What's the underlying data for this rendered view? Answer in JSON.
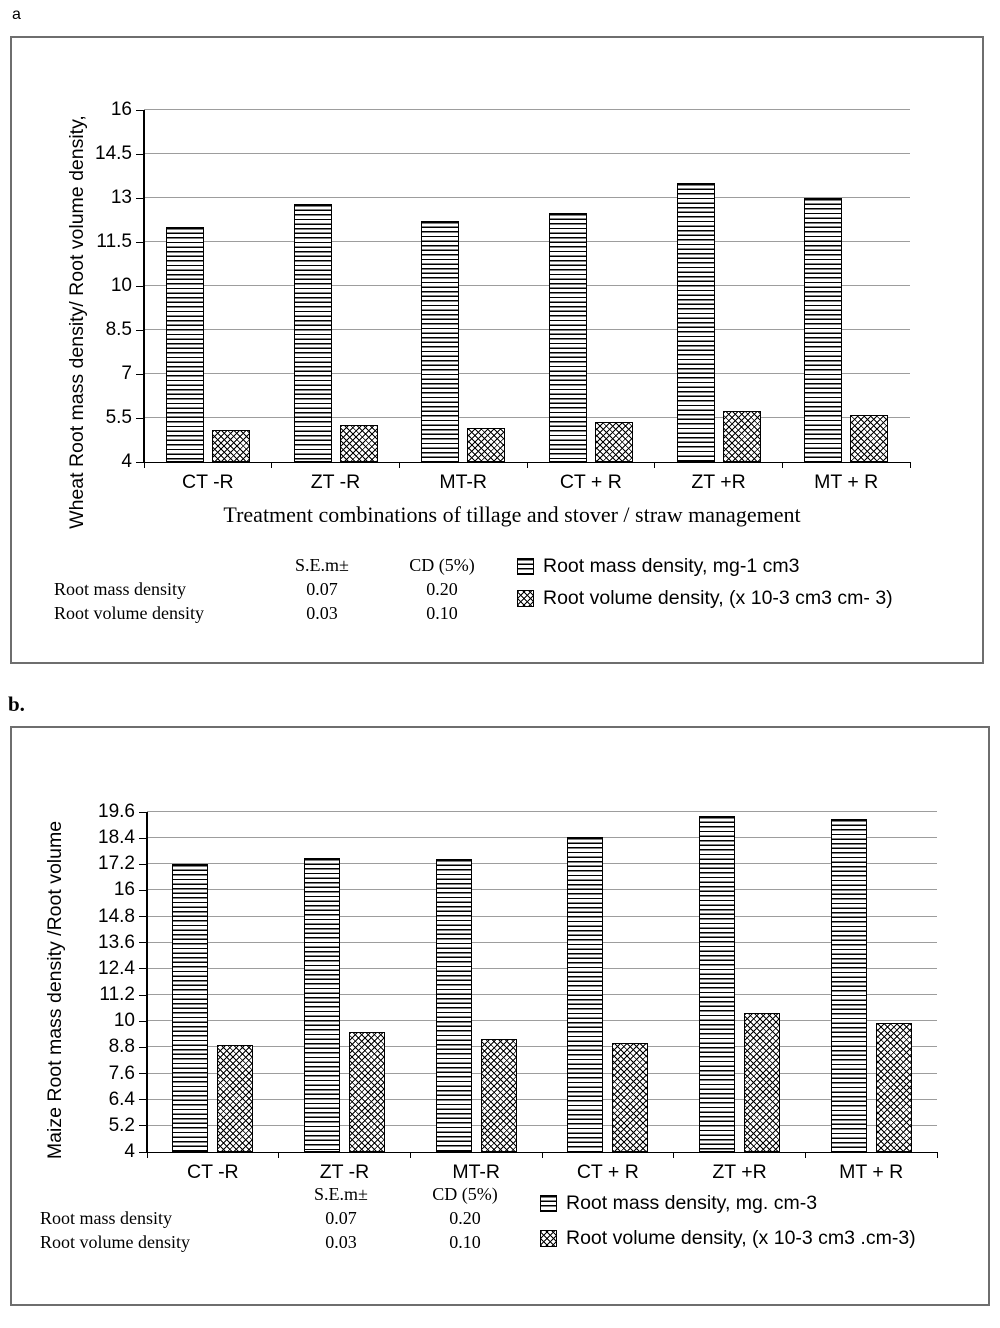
{
  "page": {
    "panel_a_label": "a",
    "panel_b_label": "b."
  },
  "chart_data": [
    {
      "type": "bar",
      "title": "",
      "categories": [
        "CT -R",
        "ZT -R",
        "MT-R",
        "CT + R",
        "ZT +R",
        "MT + R"
      ],
      "series": [
        {
          "name": "Root mass density, mg-1 cm3",
          "values": [
            12.0,
            12.8,
            12.2,
            12.5,
            13.5,
            13.0
          ]
        },
        {
          "name": "Root volume density, (x 10-3 cm3 cm- 3)",
          "values": [
            5.1,
            5.25,
            5.15,
            5.35,
            5.75,
            5.6
          ]
        }
      ],
      "xlabel": "Treatment combinations of tillage and stover / straw management",
      "ylabel": "Wheat Root mass density/ Root volume density,",
      "ylim": [
        4,
        16
      ],
      "ytick_step": 1.5,
      "grid": true,
      "legend_position": "bottom-right"
    },
    {
      "type": "bar",
      "title": "",
      "categories": [
        "CT -R",
        "ZT -R",
        "MT-R",
        "CT + R",
        "ZT +R",
        "MT + R"
      ],
      "series": [
        {
          "name": "Root mass density, mg. cm-3",
          "values": [
            17.2,
            17.5,
            17.45,
            18.45,
            19.4,
            19.3
          ]
        },
        {
          "name": "Root volume density, (x 10-3 cm3 .cm-3)",
          "values": [
            8.9,
            9.5,
            9.2,
            9.0,
            10.4,
            9.9
          ]
        }
      ],
      "xlabel": "",
      "ylabel": "Maize Root mass density /Root volume",
      "ylim": [
        4,
        19.6
      ],
      "ytick_step": 1.2,
      "grid": true,
      "legend_position": "bottom-right"
    }
  ],
  "stats": {
    "col_sem": "S.E.m±",
    "col_cd": "CD (5%)",
    "rows": [
      {
        "label": "Root mass density",
        "sem": "0.07",
        "cd": "0.20"
      },
      {
        "label": "Root volume density",
        "sem": "0.03",
        "cd": "0.10"
      }
    ]
  }
}
